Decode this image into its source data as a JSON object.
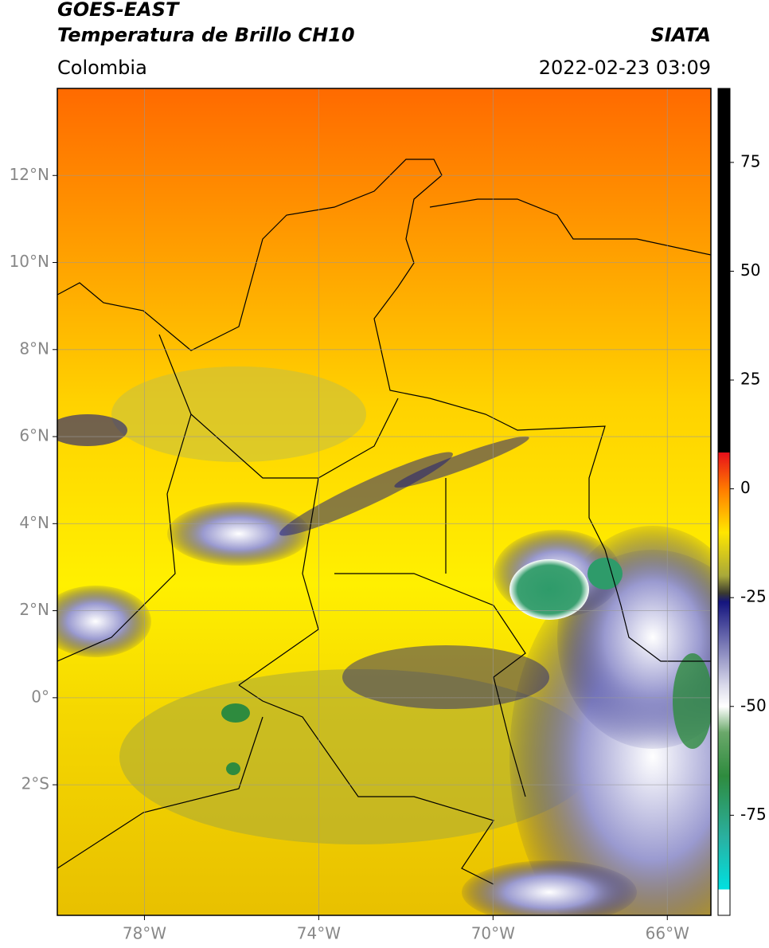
{
  "header": {
    "title_line1": "GOES-EAST",
    "title_line2": "Temperatura de Brillo CH10",
    "region": "Colombia",
    "source": "SIATA",
    "timestamp": "2022-02-23 03:09"
  },
  "map": {
    "lonlim": [
      -80,
      -65
    ],
    "latlim": [
      -5,
      14
    ],
    "lonticks": [
      {
        "value": -78,
        "label": "78°W"
      },
      {
        "value": -74,
        "label": "74°W"
      },
      {
        "value": -70,
        "label": "70°W"
      },
      {
        "value": -66,
        "label": "66°W"
      }
    ],
    "latticks": [
      {
        "value": 12,
        "label": "12°N"
      },
      {
        "value": 10,
        "label": "10°N"
      },
      {
        "value": 8,
        "label": "8°N"
      },
      {
        "value": 6,
        "label": "6°N"
      },
      {
        "value": 4,
        "label": "4°N"
      },
      {
        "value": 2,
        "label": "2°N"
      },
      {
        "value": 0,
        "label": "0°"
      },
      {
        "value": -2,
        "label": "2°S"
      }
    ]
  },
  "colorbar": {
    "lim": [
      -98,
      92
    ],
    "ticks": [
      75,
      50,
      25,
      0,
      -25,
      -50,
      -75
    ],
    "colorscale": [
      {
        "value": 92,
        "color": "#000000"
      },
      {
        "value": 8.4,
        "color": "#000000"
      },
      {
        "value": 8.3,
        "color": "#e8101a"
      },
      {
        "value": 0,
        "color": "#ff7a00"
      },
      {
        "value": -10,
        "color": "#ffe600"
      },
      {
        "value": -20,
        "color": "#a8a83a"
      },
      {
        "value": -24,
        "color": "#3a3a30"
      },
      {
        "value": -26,
        "color": "#14147e"
      },
      {
        "value": -45,
        "color": "#d8d8ea"
      },
      {
        "value": -50,
        "color": "#ffffff"
      },
      {
        "value": -56,
        "color": "#6aa86a"
      },
      {
        "value": -66,
        "color": "#2e8b3e"
      },
      {
        "value": -80,
        "color": "#2ab0a0"
      },
      {
        "value": -92,
        "color": "#00e0e0"
      },
      {
        "value": -92.1,
        "color": "#ffffff"
      },
      {
        "value": -98,
        "color": "#ffffff"
      }
    ]
  }
}
